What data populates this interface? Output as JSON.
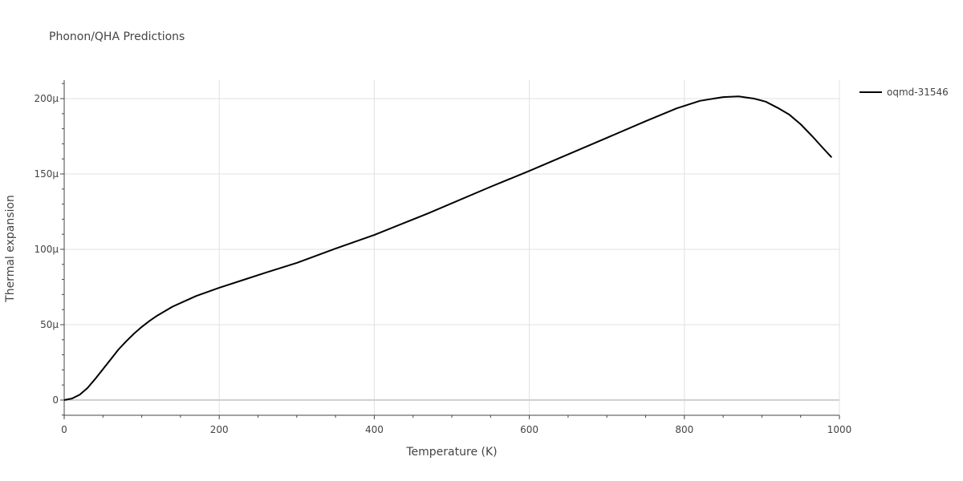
{
  "chart_data": {
    "type": "line",
    "title": "Phonon/QHA Predictions",
    "xlabel": "Temperature (K)",
    "ylabel": "Thermal expansion",
    "xlim": [
      0,
      1000
    ],
    "ylim": [
      -10,
      212
    ],
    "x_ticks": [
      0,
      200,
      400,
      600,
      800,
      1000
    ],
    "x_tick_labels": [
      "0",
      "200",
      "400",
      "600",
      "800",
      "1000"
    ],
    "y_ticks": [
      0,
      50,
      100,
      150,
      200
    ],
    "y_tick_labels": [
      "0",
      "50μ",
      "100μ",
      "150μ",
      "200μ"
    ],
    "grid": true,
    "legend_position": "top-right",
    "series": [
      {
        "name": "oqmd-31546",
        "color": "#000000",
        "x": [
          0,
          10,
          20,
          30,
          40,
          50,
          60,
          70,
          80,
          90,
          100,
          110,
          120,
          140,
          170,
          200,
          230,
          260,
          300,
          350,
          400,
          470,
          550,
          600,
          650,
          700,
          750,
          790,
          820,
          850,
          870,
          890,
          905,
          920,
          935,
          950,
          965,
          980,
          990
        ],
        "y": [
          0,
          1,
          3.5,
          8,
          14,
          20.5,
          27,
          33.5,
          39,
          44,
          48.5,
          52.5,
          56,
          62,
          69,
          74.5,
          79.5,
          84.5,
          91,
          100.5,
          109.5,
          124,
          141.5,
          152,
          163,
          174,
          185,
          193.5,
          198.5,
          201,
          201.5,
          200,
          198,
          194,
          189.5,
          183,
          175,
          166.5,
          161
        ]
      }
    ]
  }
}
